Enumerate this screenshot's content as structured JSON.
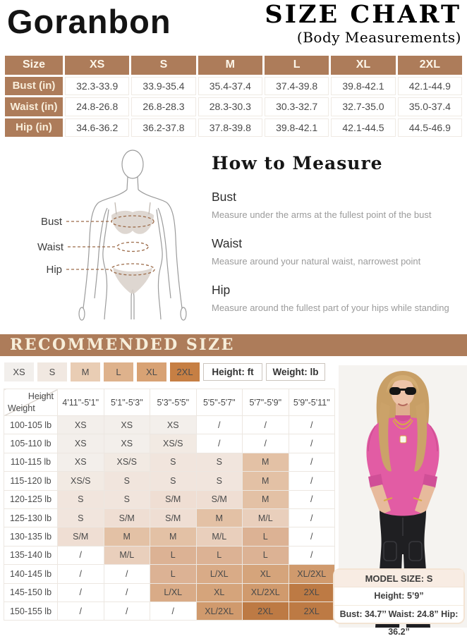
{
  "header": {
    "brand": "Goranbon",
    "title": "SIZE CHART",
    "subtitle": "(Body Measurements)"
  },
  "size_table": {
    "corner_label": "Size",
    "columns": [
      "XS",
      "S",
      "M",
      "L",
      "XL",
      "2XL"
    ],
    "rows": [
      {
        "label": "Bust (in)",
        "values": [
          "32.3-33.9",
          "33.9-35.4",
          "35.4-37.4",
          "37.4-39.8",
          "39.8-42.1",
          "42.1-44.9"
        ]
      },
      {
        "label": "Waist (in)",
        "values": [
          "24.8-26.8",
          "26.8-28.3",
          "28.3-30.3",
          "30.3-32.7",
          "32.7-35.0",
          "35.0-37.4"
        ]
      },
      {
        "label": "Hip (in)",
        "values": [
          "34.6-36.2",
          "36.2-37.8",
          "37.8-39.8",
          "39.8-42.1",
          "42.1-44.5",
          "44.5-46.9"
        ]
      }
    ],
    "header_bg": "#ad7c5a"
  },
  "measure": {
    "title": "How to Measure",
    "diagram_labels": [
      "Bust",
      "Waist",
      "Hip"
    ],
    "items": [
      {
        "name": "Bust",
        "desc": "Measure under the arms at the fullest point of the bust"
      },
      {
        "name": "Waist",
        "desc": "Measure around your natural waist, narrowest point"
      },
      {
        "name": "Hip",
        "desc": "Measure around the fullest part of your hips while standing"
      }
    ]
  },
  "recommended": {
    "title": "RECOMMENDED SIZE",
    "bar_bg": "#ad7c5a",
    "legend_sizes": [
      {
        "label": "XS",
        "color": "#f2efec"
      },
      {
        "label": "S",
        "color": "#f1e8e1"
      },
      {
        "label": "M",
        "color": "#e9cdb4"
      },
      {
        "label": "L",
        "color": "#deb28c"
      },
      {
        "label": "XL",
        "color": "#d8a274"
      },
      {
        "label": "2XL",
        "color": "#c67f44"
      }
    ],
    "unit_boxes": [
      "Height: ft",
      "Weight: lb"
    ],
    "matrix": {
      "corner_top": "Height",
      "corner_bottom": "Weight",
      "columns": [
        "4'11\"-5'1\"",
        "5'1\"-5'3\"",
        "5'3\"-5'5\"",
        "5'5\"-5'7\"",
        "5'7\"-5'9\"",
        "5'9\"-5'11\""
      ],
      "rows": [
        {
          "label": "100-105 lb",
          "cells": [
            "XS",
            "XS",
            "XS",
            "/",
            "/",
            "/"
          ]
        },
        {
          "label": "105-110 lb",
          "cells": [
            "XS",
            "XS",
            "XS/S",
            "/",
            "/",
            "/"
          ]
        },
        {
          "label": "110-115 lb",
          "cells": [
            "XS",
            "XS/S",
            "S",
            "S",
            "M",
            "/"
          ]
        },
        {
          "label": "115-120 lb",
          "cells": [
            "XS/S",
            "S",
            "S",
            "S",
            "M",
            "/"
          ]
        },
        {
          "label": "120-125 lb",
          "cells": [
            "S",
            "S",
            "S/M",
            "S/M",
            "M",
            "/"
          ]
        },
        {
          "label": "125-130 lb",
          "cells": [
            "S",
            "S/M",
            "S/M",
            "M",
            "M/L",
            "/"
          ]
        },
        {
          "label": "130-135 lb",
          "cells": [
            "S/M",
            "M",
            "M",
            "M/L",
            "L",
            "/"
          ]
        },
        {
          "label": "135-140 lb",
          "cells": [
            "/",
            "M/L",
            "L",
            "L",
            "L",
            "/"
          ]
        },
        {
          "label": "140-145 lb",
          "cells": [
            "/",
            "/",
            "L",
            "L/XL",
            "XL",
            "XL/2XL"
          ]
        },
        {
          "label": "145-150 lb",
          "cells": [
            "/",
            "/",
            "L/XL",
            "XL",
            "XL/2XL",
            "2XL"
          ]
        },
        {
          "label": "150-155 lb",
          "cells": [
            "/",
            "/",
            "/",
            "XL/2XL",
            "2XL",
            "2XL"
          ]
        }
      ],
      "cell_colors": {
        "/": "#ffffff",
        "XS": "#f3efeb",
        "XS/S": "#f2eae3",
        "S": "#f1e5dd",
        "S/M": "#efded3",
        "M": "#e3c1a5",
        "M/L": "#e9cfbc",
        "L": "#dcb294",
        "L/XL": "#d9ab87",
        "XL": "#d5a47b",
        "XL/2XL": "#d09a6d",
        "2XL": "#bd7a44"
      }
    }
  },
  "model": {
    "size_line": "MODEL SIZE: S",
    "height_line": "Height: 5’9”",
    "measure_line": "Bust: 34.7’’ Waist: 24.8” Hip: 36.2”"
  }
}
